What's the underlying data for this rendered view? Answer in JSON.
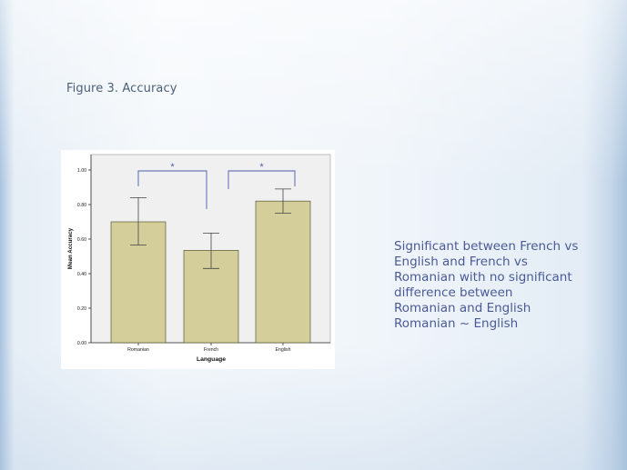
{
  "slide": {
    "figure_title": "Figure 3. Accuracy",
    "notes": [
      "Significant between French vs",
      "English and French vs",
      "Romanian with no significant",
      "difference between",
      "Romanian and English",
      "Romanian ~ English"
    ]
  },
  "colors": {
    "bar_fill": "#d4cf9a",
    "bar_stroke": "#555533",
    "bracket": "#4b5bb0",
    "plot_bg": "#f0f0f0"
  },
  "chart_data": {
    "type": "bar",
    "categories": [
      "Romanian",
      "French",
      "English"
    ],
    "values": [
      0.7,
      0.535,
      0.82
    ],
    "error_low": [
      0.565,
      0.43,
      0.75
    ],
    "error_high": [
      0.84,
      0.635,
      0.89
    ],
    "xlabel": "Language",
    "ylabel": "Mean Accuracy",
    "ylim": [
      0,
      1.0
    ],
    "yticks": [
      "0.00",
      "0.20",
      "0.40",
      "0.60",
      "0.80",
      "1.00"
    ],
    "ytick_values": [
      0,
      0.2,
      0.4,
      0.6,
      0.8,
      1.0
    ],
    "grid": false,
    "significance": [
      {
        "from": "Romanian",
        "to": "French",
        "label": "*"
      },
      {
        "from": "French",
        "to": "English",
        "label": "*"
      }
    ]
  }
}
